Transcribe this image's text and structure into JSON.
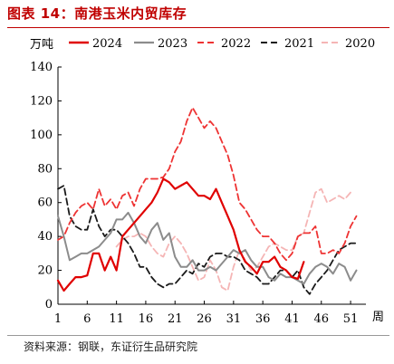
{
  "header": {
    "title": "图表 14：南港玉米内贸库存"
  },
  "footer": {
    "source": "资料来源：钢联，东证衍生品研究院"
  },
  "colors": {
    "accent": "#c00000"
  },
  "chart_data": {
    "type": "line",
    "title": "图表 14：南港玉米内贸库存",
    "ylabel": "万吨",
    "xlabel": "周",
    "ylim": [
      0,
      140
    ],
    "xlim": [
      1,
      53
    ],
    "y_ticks": [
      0,
      20,
      40,
      60,
      80,
      100,
      120,
      140
    ],
    "x_ticks": [
      1,
      6,
      11,
      16,
      21,
      26,
      31,
      36,
      41,
      46,
      51
    ],
    "legend_position": "top",
    "grid": false,
    "series": [
      {
        "name": "2024",
        "color": "#e00000",
        "dash": "solid",
        "width": 2.2,
        "x": [
          1,
          2,
          3,
          4,
          5,
          6,
          7,
          8,
          9,
          10,
          11,
          12,
          13,
          14,
          15,
          16,
          17,
          18,
          19,
          20,
          21,
          22,
          23,
          24,
          25,
          26,
          27,
          28,
          29,
          30,
          31,
          32,
          33,
          34,
          35,
          36,
          37,
          38,
          39,
          40,
          41,
          42,
          43
        ],
        "y": [
          14,
          8,
          12,
          16,
          16,
          17,
          30,
          30,
          20,
          28,
          20,
          40,
          44,
          48,
          52,
          56,
          60,
          66,
          74,
          72,
          68,
          70,
          72,
          68,
          64,
          64,
          62,
          68,
          60,
          52,
          44,
          32,
          25,
          22,
          18,
          25,
          25,
          28,
          22,
          20,
          16,
          15,
          25
        ]
      },
      {
        "name": "2023",
        "color": "#8c8c8c",
        "dash": "solid",
        "width": 2.0,
        "x": [
          1,
          2,
          3,
          4,
          5,
          6,
          7,
          8,
          9,
          10,
          11,
          12,
          13,
          14,
          15,
          16,
          17,
          18,
          19,
          20,
          21,
          22,
          23,
          24,
          25,
          26,
          27,
          28,
          29,
          30,
          31,
          32,
          33,
          34,
          35,
          36,
          37,
          38,
          39,
          40,
          41,
          42,
          43,
          44,
          45,
          46,
          47,
          48,
          49,
          50,
          51,
          52
        ],
        "y": [
          52,
          40,
          26,
          28,
          30,
          30,
          32,
          34,
          38,
          42,
          50,
          50,
          54,
          48,
          40,
          36,
          44,
          48,
          38,
          42,
          28,
          22,
          22,
          26,
          20,
          20,
          22,
          20,
          24,
          28,
          32,
          30,
          32,
          26,
          22,
          22,
          16,
          14,
          18,
          16,
          16,
          14,
          12,
          18,
          22,
          24,
          22,
          18,
          24,
          22,
          14,
          20
        ]
      },
      {
        "name": "2022",
        "color": "#ee3333",
        "dash": "7,4",
        "width": 1.8,
        "x": [
          1,
          2,
          3,
          4,
          5,
          6,
          7,
          8,
          9,
          10,
          11,
          12,
          13,
          14,
          15,
          16,
          17,
          18,
          19,
          20,
          21,
          22,
          23,
          24,
          25,
          26,
          27,
          28,
          29,
          30,
          31,
          32,
          33,
          34,
          35,
          36,
          37,
          38,
          39,
          40,
          41,
          42,
          43,
          44,
          45,
          46,
          47,
          48,
          49,
          50,
          51,
          52
        ],
        "y": [
          38,
          40,
          48,
          54,
          58,
          60,
          56,
          68,
          58,
          62,
          56,
          64,
          66,
          58,
          68,
          74,
          74,
          74,
          75,
          80,
          90,
          96,
          108,
          116,
          110,
          104,
          108,
          104,
          96,
          88,
          76,
          60,
          56,
          50,
          44,
          40,
          40,
          36,
          30,
          26,
          30,
          40,
          42,
          42,
          46,
          30,
          30,
          32,
          30,
          36,
          46,
          52
        ]
      },
      {
        "name": "2021",
        "color": "#1a1a1a",
        "dash": "7,4",
        "width": 1.8,
        "x": [
          1,
          2,
          3,
          4,
          5,
          6,
          7,
          8,
          9,
          10,
          11,
          12,
          13,
          14,
          15,
          16,
          17,
          18,
          19,
          20,
          21,
          22,
          23,
          24,
          25,
          26,
          27,
          28,
          29,
          30,
          31,
          32,
          33,
          34,
          35,
          36,
          37,
          38,
          39,
          40,
          41,
          42,
          43,
          44,
          45,
          46,
          47,
          48,
          49,
          50,
          51,
          52
        ],
        "y": [
          68,
          70,
          52,
          46,
          44,
          44,
          56,
          46,
          40,
          44,
          44,
          40,
          36,
          30,
          22,
          22,
          16,
          12,
          10,
          12,
          12,
          16,
          20,
          18,
          24,
          22,
          28,
          30,
          30,
          28,
          28,
          26,
          20,
          18,
          16,
          12,
          12,
          16,
          20,
          20,
          16,
          20,
          10,
          6,
          12,
          16,
          20,
          26,
          32,
          34,
          36,
          36
        ]
      },
      {
        "name": "2020",
        "color": "#f5b5b5",
        "dash": "7,4",
        "width": 1.8,
        "x": [
          11,
          12,
          13,
          14,
          15,
          16,
          17,
          18,
          19,
          20,
          21,
          22,
          23,
          24,
          25,
          26,
          27,
          28,
          29,
          30,
          31,
          32,
          33,
          34,
          35,
          36,
          37,
          38,
          39,
          40,
          41,
          42,
          43,
          44,
          45,
          46,
          47,
          48,
          49,
          50,
          51
        ],
        "y": [
          34,
          38,
          40,
          40,
          42,
          40,
          34,
          30,
          28,
          36,
          40,
          36,
          30,
          22,
          14,
          16,
          26,
          20,
          10,
          8,
          22,
          32,
          26,
          20,
          22,
          28,
          34,
          36,
          34,
          32,
          32,
          40,
          42,
          54,
          66,
          68,
          60,
          62,
          64,
          62,
          66
        ]
      }
    ]
  }
}
